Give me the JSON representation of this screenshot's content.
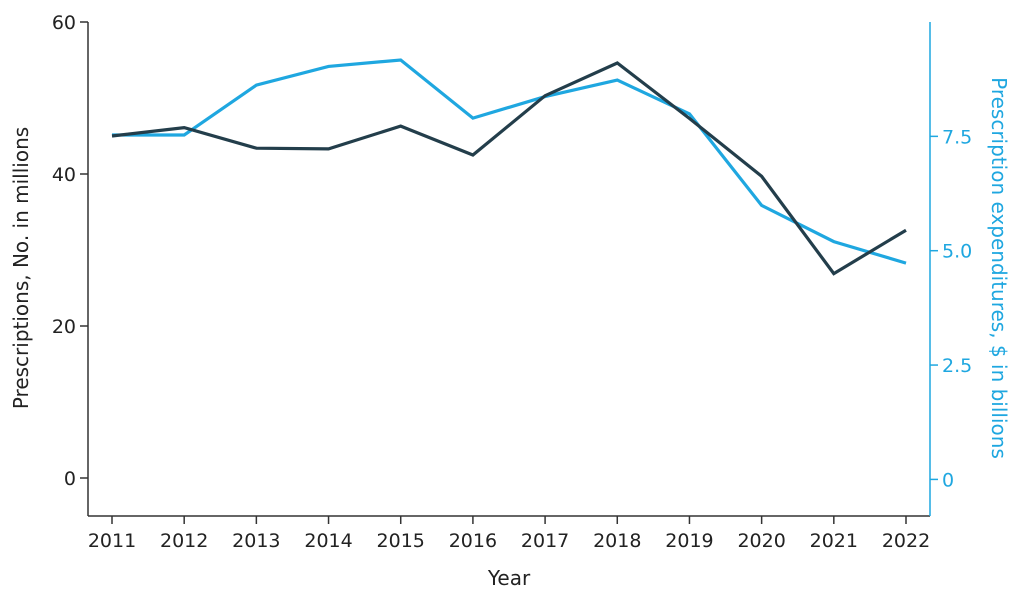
{
  "chart_data": {
    "type": "line",
    "title": "",
    "xlabel": "Year",
    "ylabel_left": "Prescriptions, No. in millions",
    "ylabel_right": "Prescription expenditures, $ in billions",
    "x": [
      "2011",
      "2012",
      "2013",
      "2014",
      "2015",
      "2016",
      "2017",
      "2018",
      "2019",
      "2020",
      "2021",
      "2022"
    ],
    "ylim_left": [
      -5,
      60
    ],
    "ylim_right": [
      -0.8,
      10
    ],
    "yticks_left": [
      0,
      20,
      40,
      60
    ],
    "yticks_right": [
      "0",
      "2.5",
      "5.0",
      "7.5"
    ],
    "yticks_right_values": [
      0,
      2.5,
      5.0,
      7.5
    ],
    "grid": false,
    "series": [
      {
        "axis": "left",
        "color": "#233e4b",
        "values": [
          45.0,
          46.1,
          43.4,
          43.3,
          46.3,
          42.5,
          50.3,
          54.6,
          47.3,
          39.7,
          26.9,
          32.6
        ]
      },
      {
        "axis": "right",
        "color": "#1fa7e0",
        "values": [
          7.53,
          7.53,
          8.62,
          9.03,
          9.17,
          7.9,
          8.37,
          8.73,
          7.99,
          5.99,
          5.2,
          4.73
        ]
      }
    ],
    "colors": {
      "left_axis_text": "#222222",
      "right_axis_text": "#1fa7e0"
    }
  }
}
